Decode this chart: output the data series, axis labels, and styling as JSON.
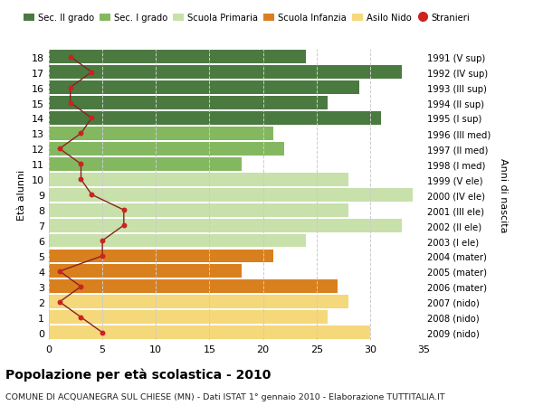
{
  "ages": [
    18,
    17,
    16,
    15,
    14,
    13,
    12,
    11,
    10,
    9,
    8,
    7,
    6,
    5,
    4,
    3,
    2,
    1,
    0
  ],
  "years": [
    "1991 (V sup)",
    "1992 (IV sup)",
    "1993 (III sup)",
    "1994 (II sup)",
    "1995 (I sup)",
    "1996 (III med)",
    "1997 (II med)",
    "1998 (I med)",
    "1999 (V ele)",
    "2000 (IV ele)",
    "2001 (III ele)",
    "2002 (II ele)",
    "2003 (I ele)",
    "2004 (mater)",
    "2005 (mater)",
    "2006 (mater)",
    "2007 (nido)",
    "2008 (nido)",
    "2009 (nido)"
  ],
  "bar_values": [
    24,
    33,
    29,
    26,
    31,
    21,
    22,
    18,
    28,
    34,
    28,
    33,
    24,
    21,
    18,
    27,
    28,
    26,
    30
  ],
  "bar_colors": [
    "#4a7a40",
    "#4a7a40",
    "#4a7a40",
    "#4a7a40",
    "#4a7a40",
    "#84b860",
    "#84b860",
    "#84b860",
    "#c8e0aa",
    "#c8e0aa",
    "#c8e0aa",
    "#c8e0aa",
    "#c8e0aa",
    "#d9801e",
    "#d9801e",
    "#d9801e",
    "#f5d87a",
    "#f5d87a",
    "#f5d87a"
  ],
  "stranieri_values": [
    2,
    4,
    2,
    2,
    4,
    3,
    1,
    3,
    3,
    4,
    7,
    7,
    5,
    5,
    1,
    3,
    1,
    3,
    5
  ],
  "ylabel_left": "Età alunni",
  "ylabel_right": "Anni di nascita",
  "title": "Popolazione per età scolastica - 2010",
  "subtitle": "COMUNE DI ACQUANEGRA SUL CHIESE (MN) - Dati ISTAT 1° gennaio 2010 - Elaborazione TUTTITALIA.IT",
  "xlim": [
    0,
    35
  ],
  "xticks": [
    0,
    5,
    10,
    15,
    20,
    25,
    30,
    35
  ],
  "legend_labels": [
    "Sec. II grado",
    "Sec. I grado",
    "Scuola Primaria",
    "Scuola Infanzia",
    "Asilo Nido",
    "Stranieri"
  ],
  "legend_colors": [
    "#4a7a40",
    "#84b860",
    "#c8e0aa",
    "#d9801e",
    "#f5d87a",
    "#cc2222"
  ],
  "stranieri_dot_color": "#cc2222",
  "stranieri_line_color": "#882222",
  "bg_color": "#ffffff",
  "grid_color": "#cccccc",
  "bar_height": 0.88
}
